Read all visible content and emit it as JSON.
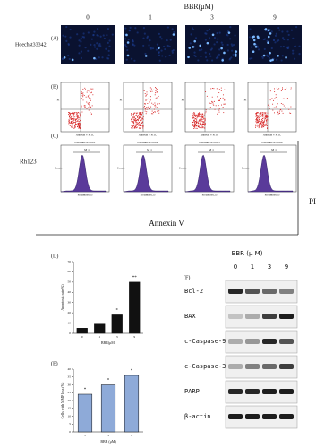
{
  "figure": {
    "dose_label": "BBR(μM)",
    "doses": [
      "0",
      "1",
      "3",
      "9"
    ],
    "panel_a": {
      "label": "(A)",
      "row_label": "Hoechst33342"
    },
    "panel_b": {
      "label": "(B)",
      "x_axis": "Annexin V FITC",
      "y_axis": "PI"
    },
    "panel_c": {
      "label": "(C)",
      "row_label": "Rh123",
      "files": [
        "rodamin123.001",
        "rodamin123.002",
        "rodamin123.003",
        "rodamin123.004"
      ],
      "gate": "M 1",
      "x_axis": "Rodamine123",
      "y_axis": "Counts"
    },
    "axis_pi": "PI",
    "axis_annexin": "Annexin V"
  },
  "chart_data": [
    {
      "type": "bar",
      "label": "(D)",
      "ylabel": "Apoptosis rate(%)",
      "xlabel": "BBR(μM)",
      "categories": [
        "0",
        "1",
        "3",
        "9"
      ],
      "values": [
        5,
        9,
        18,
        50
      ],
      "annotations": [
        null,
        null,
        "*",
        "**"
      ],
      "color": "#111111",
      "ylim": [
        0,
        70
      ],
      "yticks": [
        0,
        10,
        20,
        30,
        40,
        50,
        60,
        70
      ]
    },
    {
      "type": "bar",
      "label": "(E)",
      "ylabel": "Cells with MMP loss (%)",
      "xlabel": "BBR (μM)",
      "categories": [
        "1",
        "3",
        "9"
      ],
      "values": [
        24,
        30,
        36
      ],
      "annotations": [
        "*",
        "*",
        "*"
      ],
      "color": "#8eaad8",
      "ylim": [
        0,
        40
      ],
      "yticks": [
        0,
        5,
        10,
        15,
        20,
        25,
        30,
        35,
        40
      ]
    }
  ],
  "blot": {
    "label": "(F)",
    "title": "BBR (μ M)",
    "lanes": [
      "0",
      "1",
      "3",
      "9"
    ],
    "proteins": [
      "Bcl-2",
      "BAX",
      "c-Caspase-9",
      "c-Caspase-3",
      "PARP",
      "β-actin"
    ]
  }
}
